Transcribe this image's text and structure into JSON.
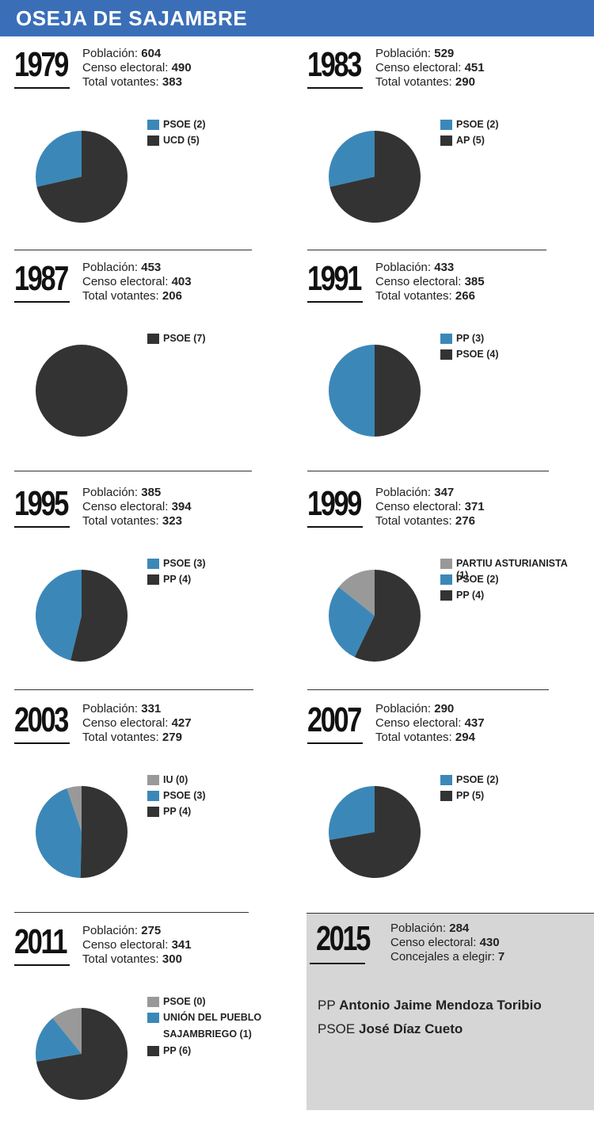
{
  "title": "OSEJA DE SAJAMBRE",
  "colors": {
    "header": "#3a6fb8",
    "blue": "#3b88b8",
    "dark": "#333333",
    "gray": "#999999",
    "box": "#d6d6d6"
  },
  "labels": {
    "poblacion": "Población:",
    "censo": "Censo electoral:",
    "votantes": "Total votantes:",
    "concejales": "Concejales a elegir:"
  },
  "chart_data": [
    {
      "type": "pie",
      "year": "1979",
      "poblacion": "604",
      "censo": "490",
      "votantes": "383",
      "series": [
        {
          "name": "PSOE (2)",
          "value": 2,
          "color": "#3b88b8"
        },
        {
          "name": "UCD (5)",
          "value": 5,
          "color": "#333333"
        }
      ]
    },
    {
      "type": "pie",
      "year": "1983",
      "poblacion": "529",
      "censo": "451",
      "votantes": "290",
      "series": [
        {
          "name": "PSOE (2)",
          "value": 2,
          "color": "#3b88b8"
        },
        {
          "name": "AP (5)",
          "value": 5,
          "color": "#333333"
        }
      ]
    },
    {
      "type": "pie",
      "year": "1987",
      "poblacion": "453",
      "censo": "403",
      "votantes": "206",
      "series": [
        {
          "name": "PSOE (7)",
          "value": 7,
          "color": "#333333"
        }
      ]
    },
    {
      "type": "pie",
      "year": "1991",
      "poblacion": "433",
      "censo": "385",
      "votantes": "266",
      "series": [
        {
          "name": "PP (3)",
          "value": 3,
          "color": "#3b88b8"
        },
        {
          "name": "PSOE (4)",
          "value": 3,
          "color": "#333333"
        }
      ]
    },
    {
      "type": "pie",
      "year": "1995",
      "poblacion": "385",
      "censo": "394",
      "votantes": "323",
      "series": [
        {
          "name": "PSOE (3)",
          "value": 3,
          "color": "#3b88b8"
        },
        {
          "name": "PP (4)",
          "value": 3.5,
          "color": "#333333"
        }
      ]
    },
    {
      "type": "pie",
      "year": "1999",
      "poblacion": "347",
      "censo": "371",
      "votantes": "276",
      "series": [
        {
          "name": "PARTIU ASTURIANISTA (1)",
          "value": 1,
          "color": "#999999"
        },
        {
          "name": "PSOE (2)",
          "value": 2,
          "color": "#3b88b8"
        },
        {
          "name": "PP (4)",
          "value": 4,
          "color": "#333333"
        }
      ]
    },
    {
      "type": "pie",
      "year": "2003",
      "poblacion": "331",
      "censo": "427",
      "votantes": "279",
      "series": [
        {
          "name": "IU (0)",
          "value": 0.35,
          "color": "#999999"
        },
        {
          "name": "PSOE (3)",
          "value": 3,
          "color": "#3b88b8"
        },
        {
          "name": "PP (4)",
          "value": 3.4,
          "color": "#333333"
        }
      ]
    },
    {
      "type": "pie",
      "year": "2007",
      "poblacion": "290",
      "censo": "437",
      "votantes": "294",
      "series": [
        {
          "name": "PSOE (2)",
          "value": 2,
          "color": "#3b88b8"
        },
        {
          "name": "PP (5)",
          "value": 5.2,
          "color": "#333333"
        }
      ]
    },
    {
      "type": "pie",
      "year": "2011",
      "poblacion": "275",
      "censo": "341",
      "votantes": "300",
      "series": [
        {
          "name": "PSOE (0)",
          "value": 0.9,
          "color": "#999999"
        },
        {
          "name": "UNIÓN DEL PUEBLO SAJAMBRIEGO (1)",
          "value": 1.4,
          "color": "#3b88b8"
        },
        {
          "name": "PP (6)",
          "value": 6,
          "color": "#333333"
        }
      ]
    }
  ],
  "y2015": {
    "year": "2015",
    "poblacion": "284",
    "censo": "430",
    "concejales": "7",
    "candidates": [
      {
        "party": "PP",
        "name": "Antonio Jaime Mendoza Toribio"
      },
      {
        "party": "PSOE",
        "name": "José Díaz Cueto"
      }
    ]
  }
}
